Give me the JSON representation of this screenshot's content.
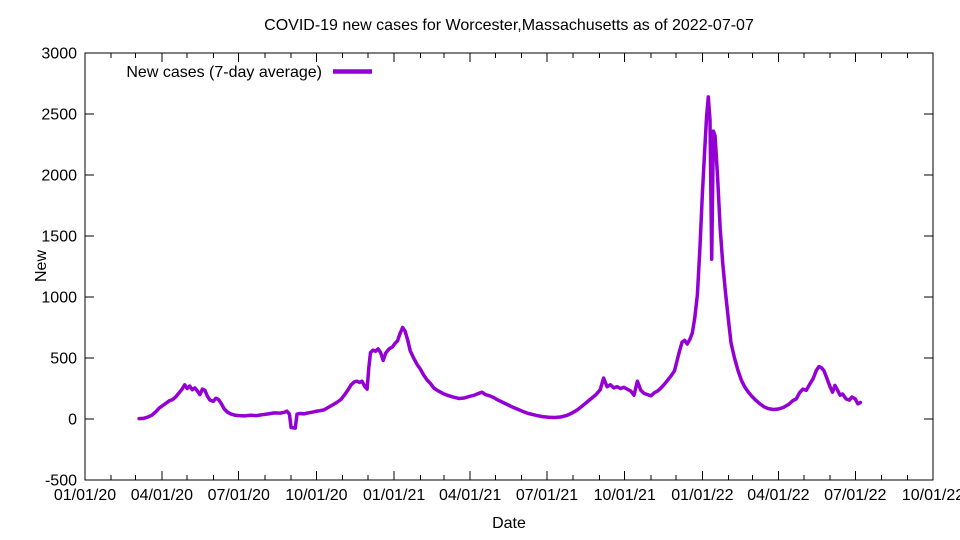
{
  "page": {
    "background": "#ffffff"
  },
  "chart_data": {
    "type": "line",
    "title": "COVID-19 new cases for Worcester,Massachusetts as of 2022-07-07",
    "xlabel": "Date",
    "ylabel": "New",
    "legend": {
      "label": "New cases (7-day average)",
      "position": "top-left-inside"
    },
    "grid": false,
    "frame_color": "#000000",
    "line_color": "#9400d3",
    "x_axis": {
      "min": "2020-01-01",
      "max": "2022-10-01",
      "minor_tick_interval": "month",
      "major_ticks": [
        {
          "date": "2020-01-01",
          "label": "01/01/20"
        },
        {
          "date": "2020-04-01",
          "label": "04/01/20"
        },
        {
          "date": "2020-07-01",
          "label": "07/01/20"
        },
        {
          "date": "2020-10-01",
          "label": "10/01/20"
        },
        {
          "date": "2021-01-01",
          "label": "01/01/21"
        },
        {
          "date": "2021-04-01",
          "label": "04/01/21"
        },
        {
          "date": "2021-07-01",
          "label": "07/01/21"
        },
        {
          "date": "2021-10-01",
          "label": "10/01/21"
        },
        {
          "date": "2022-01-01",
          "label": "01/01/22"
        },
        {
          "date": "2022-04-01",
          "label": "04/01/22"
        },
        {
          "date": "2022-07-01",
          "label": "07/01/22"
        },
        {
          "date": "2022-10-01",
          "label": "10/01/22"
        }
      ]
    },
    "y_axis": {
      "min": -500,
      "max": 3000,
      "tick_step": 500,
      "tick_labels": [
        "-500",
        "0",
        "500",
        "1000",
        "1500",
        "2000",
        "2500",
        "3000"
      ]
    },
    "series": [
      {
        "name": "New cases (7-day average)",
        "color": "#9400d3",
        "points": [
          [
            "2020-03-05",
            3
          ],
          [
            "2020-03-10",
            5
          ],
          [
            "2020-03-15",
            15
          ],
          [
            "2020-03-20",
            30
          ],
          [
            "2020-03-25",
            60
          ],
          [
            "2020-03-29",
            90
          ],
          [
            "2020-04-02",
            110
          ],
          [
            "2020-04-06",
            130
          ],
          [
            "2020-04-10",
            150
          ],
          [
            "2020-04-14",
            160
          ],
          [
            "2020-04-18",
            185
          ],
          [
            "2020-04-22",
            220
          ],
          [
            "2020-04-25",
            245
          ],
          [
            "2020-04-28",
            280
          ],
          [
            "2020-05-01",
            250
          ],
          [
            "2020-05-04",
            270
          ],
          [
            "2020-05-07",
            240
          ],
          [
            "2020-05-10",
            255
          ],
          [
            "2020-05-13",
            230
          ],
          [
            "2020-05-16",
            200
          ],
          [
            "2020-05-19",
            245
          ],
          [
            "2020-05-22",
            235
          ],
          [
            "2020-05-25",
            185
          ],
          [
            "2020-05-28",
            155
          ],
          [
            "2020-06-01",
            145
          ],
          [
            "2020-06-04",
            170
          ],
          [
            "2020-06-07",
            160
          ],
          [
            "2020-06-10",
            130
          ],
          [
            "2020-06-14",
            80
          ],
          [
            "2020-06-18",
            55
          ],
          [
            "2020-06-22",
            40
          ],
          [
            "2020-06-26",
            32
          ],
          [
            "2020-07-01",
            28
          ],
          [
            "2020-07-08",
            25
          ],
          [
            "2020-07-15",
            30
          ],
          [
            "2020-07-22",
            28
          ],
          [
            "2020-07-29",
            35
          ],
          [
            "2020-08-05",
            42
          ],
          [
            "2020-08-12",
            50
          ],
          [
            "2020-08-19",
            48
          ],
          [
            "2020-08-24",
            55
          ],
          [
            "2020-08-27",
            65
          ],
          [
            "2020-08-30",
            40
          ],
          [
            "2020-09-01",
            -70
          ],
          [
            "2020-09-06",
            -75
          ],
          [
            "2020-09-08",
            40
          ],
          [
            "2020-09-12",
            45
          ],
          [
            "2020-09-16",
            42
          ],
          [
            "2020-09-20",
            48
          ],
          [
            "2020-09-25",
            55
          ],
          [
            "2020-09-30",
            62
          ],
          [
            "2020-10-05",
            68
          ],
          [
            "2020-10-10",
            75
          ],
          [
            "2020-10-15",
            95
          ],
          [
            "2020-10-20",
            115
          ],
          [
            "2020-10-25",
            135
          ],
          [
            "2020-10-30",
            160
          ],
          [
            "2020-11-03",
            195
          ],
          [
            "2020-11-07",
            235
          ],
          [
            "2020-11-11",
            280
          ],
          [
            "2020-11-15",
            305
          ],
          [
            "2020-11-18",
            310
          ],
          [
            "2020-11-21",
            300
          ],
          [
            "2020-11-24",
            310
          ],
          [
            "2020-11-27",
            270
          ],
          [
            "2020-11-30",
            245
          ],
          [
            "2020-12-02",
            420
          ],
          [
            "2020-12-04",
            545
          ],
          [
            "2020-12-07",
            565
          ],
          [
            "2020-12-10",
            555
          ],
          [
            "2020-12-13",
            575
          ],
          [
            "2020-12-16",
            545
          ],
          [
            "2020-12-19",
            480
          ],
          [
            "2020-12-22",
            540
          ],
          [
            "2020-12-26",
            575
          ],
          [
            "2020-12-30",
            590
          ],
          [
            "2021-01-02",
            620
          ],
          [
            "2021-01-05",
            640
          ],
          [
            "2021-01-08",
            700
          ],
          [
            "2021-01-11",
            750
          ],
          [
            "2021-01-14",
            720
          ],
          [
            "2021-01-17",
            650
          ],
          [
            "2021-01-20",
            560
          ],
          [
            "2021-01-24",
            500
          ],
          [
            "2021-01-28",
            450
          ],
          [
            "2021-02-01",
            410
          ],
          [
            "2021-02-05",
            360
          ],
          [
            "2021-02-09",
            320
          ],
          [
            "2021-02-13",
            290
          ],
          [
            "2021-02-17",
            255
          ],
          [
            "2021-02-21",
            235
          ],
          [
            "2021-02-25",
            220
          ],
          [
            "2021-03-01",
            205
          ],
          [
            "2021-03-07",
            190
          ],
          [
            "2021-03-13",
            178
          ],
          [
            "2021-03-19",
            168
          ],
          [
            "2021-03-25",
            172
          ],
          [
            "2021-03-31",
            185
          ],
          [
            "2021-04-06",
            195
          ],
          [
            "2021-04-11",
            210
          ],
          [
            "2021-04-15",
            220
          ],
          [
            "2021-04-19",
            200
          ],
          [
            "2021-04-24",
            190
          ],
          [
            "2021-04-29",
            175
          ],
          [
            "2021-05-04",
            155
          ],
          [
            "2021-05-10",
            135
          ],
          [
            "2021-05-16",
            115
          ],
          [
            "2021-05-22",
            95
          ],
          [
            "2021-05-28",
            78
          ],
          [
            "2021-06-03",
            60
          ],
          [
            "2021-06-09",
            45
          ],
          [
            "2021-06-15",
            35
          ],
          [
            "2021-06-21",
            25
          ],
          [
            "2021-06-27",
            18
          ],
          [
            "2021-07-03",
            14
          ],
          [
            "2021-07-10",
            12
          ],
          [
            "2021-07-17",
            16
          ],
          [
            "2021-07-24",
            28
          ],
          [
            "2021-07-31",
            50
          ],
          [
            "2021-08-07",
            80
          ],
          [
            "2021-08-14",
            120
          ],
          [
            "2021-08-21",
            160
          ],
          [
            "2021-08-28",
            200
          ],
          [
            "2021-09-02",
            240
          ],
          [
            "2021-09-06",
            335
          ],
          [
            "2021-09-10",
            265
          ],
          [
            "2021-09-14",
            280
          ],
          [
            "2021-09-18",
            255
          ],
          [
            "2021-09-22",
            265
          ],
          [
            "2021-09-26",
            250
          ],
          [
            "2021-09-30",
            260
          ],
          [
            "2021-10-04",
            245
          ],
          [
            "2021-10-08",
            230
          ],
          [
            "2021-10-12",
            195
          ],
          [
            "2021-10-16",
            310
          ],
          [
            "2021-10-20",
            235
          ],
          [
            "2021-10-24",
            210
          ],
          [
            "2021-10-28",
            200
          ],
          [
            "2021-11-01",
            190
          ],
          [
            "2021-11-05",
            215
          ],
          [
            "2021-11-09",
            230
          ],
          [
            "2021-11-13",
            255
          ],
          [
            "2021-11-17",
            285
          ],
          [
            "2021-11-21",
            320
          ],
          [
            "2021-11-25",
            355
          ],
          [
            "2021-11-29",
            395
          ],
          [
            "2021-12-02",
            480
          ],
          [
            "2021-12-05",
            560
          ],
          [
            "2021-12-08",
            630
          ],
          [
            "2021-12-11",
            645
          ],
          [
            "2021-12-14",
            615
          ],
          [
            "2021-12-17",
            650
          ],
          [
            "2021-12-20",
            705
          ],
          [
            "2021-12-23",
            830
          ],
          [
            "2021-12-26",
            1020
          ],
          [
            "2021-12-29",
            1400
          ],
          [
            "2022-01-01",
            1850
          ],
          [
            "2022-01-04",
            2250
          ],
          [
            "2022-01-06",
            2480
          ],
          [
            "2022-01-08",
            2640
          ],
          [
            "2022-01-10",
            2450
          ],
          [
            "2022-01-12",
            1310
          ],
          [
            "2022-01-14",
            2360
          ],
          [
            "2022-01-16",
            2320
          ],
          [
            "2022-01-19",
            1980
          ],
          [
            "2022-01-22",
            1560
          ],
          [
            "2022-01-25",
            1280
          ],
          [
            "2022-01-28",
            1060
          ],
          [
            "2022-02-01",
            800
          ],
          [
            "2022-02-04",
            620
          ],
          [
            "2022-02-08",
            500
          ],
          [
            "2022-02-12",
            400
          ],
          [
            "2022-02-16",
            320
          ],
          [
            "2022-02-20",
            265
          ],
          [
            "2022-02-24",
            225
          ],
          [
            "2022-02-28",
            190
          ],
          [
            "2022-03-05",
            155
          ],
          [
            "2022-03-10",
            125
          ],
          [
            "2022-03-15",
            100
          ],
          [
            "2022-03-20",
            85
          ],
          [
            "2022-03-26",
            78
          ],
          [
            "2022-04-01",
            82
          ],
          [
            "2022-04-07",
            95
          ],
          [
            "2022-04-13",
            120
          ],
          [
            "2022-04-18",
            150
          ],
          [
            "2022-04-22",
            165
          ],
          [
            "2022-04-26",
            215
          ],
          [
            "2022-04-30",
            245
          ],
          [
            "2022-05-04",
            235
          ],
          [
            "2022-05-08",
            285
          ],
          [
            "2022-05-12",
            330
          ],
          [
            "2022-05-16",
            400
          ],
          [
            "2022-05-19",
            430
          ],
          [
            "2022-05-22",
            420
          ],
          [
            "2022-05-25",
            395
          ],
          [
            "2022-05-28",
            340
          ],
          [
            "2022-06-01",
            265
          ],
          [
            "2022-06-04",
            220
          ],
          [
            "2022-06-07",
            275
          ],
          [
            "2022-06-10",
            235
          ],
          [
            "2022-06-13",
            195
          ],
          [
            "2022-06-16",
            205
          ],
          [
            "2022-06-20",
            165
          ],
          [
            "2022-06-24",
            155
          ],
          [
            "2022-06-27",
            180
          ],
          [
            "2022-07-01",
            165
          ],
          [
            "2022-07-04",
            125
          ],
          [
            "2022-07-07",
            135
          ]
        ]
      }
    ]
  }
}
